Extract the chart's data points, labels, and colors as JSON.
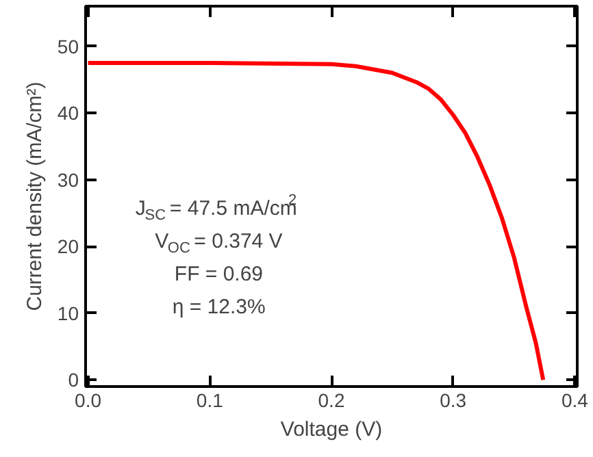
{
  "chart_data": {
    "type": "line",
    "xlabel": "Voltage (V)",
    "ylabel": "Current density (mA/cm²)",
    "xlim": [
      -0.002,
      0.402
    ],
    "ylim": [
      -1,
      56
    ],
    "xticks": [
      {
        "value": 0,
        "label": "0.0"
      },
      0.1,
      0.2,
      0.3,
      0.4
    ],
    "yticks": [
      0,
      10,
      20,
      30,
      40,
      50
    ],
    "grid": false,
    "marker": "none",
    "line_style": "solid",
    "series": [
      {
        "color": "#ff0000",
        "x": [
          0,
          0.1,
          0.2,
          0.22,
          0.25,
          0.27,
          0.28,
          0.29,
          0.3,
          0.31,
          0.32,
          0.33,
          0.34,
          0.35,
          0.36,
          0.368,
          0.374
        ],
        "values": [
          47.5,
          47.5,
          47.3,
          47.0,
          46.0,
          44.6,
          43.6,
          42.0,
          39.7,
          37.0,
          33.4,
          29.2,
          24.3,
          18.4,
          11.0,
          5.5,
          0
        ]
      }
    ],
    "annotations": [
      "J$_{SC}$ = 47.5 mA/cm$^{2}$",
      "V$_{OC}$ = 0.374 V",
      "FF = 0.69",
      "η = 12.3%"
    ]
  }
}
